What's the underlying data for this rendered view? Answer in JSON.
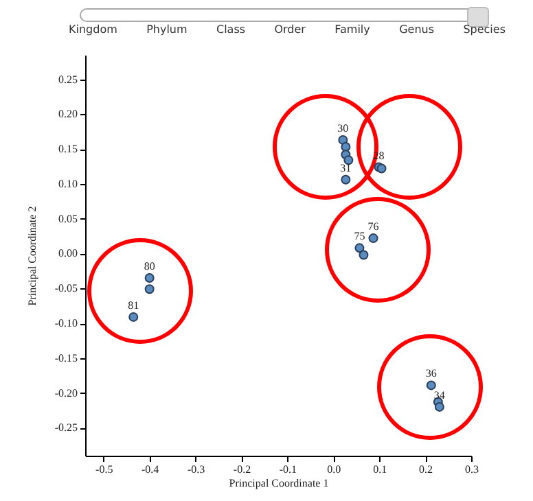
{
  "chart_data": {
    "type": "scatter",
    "xlabel": "Principal Coordinate 1",
    "ylabel": "Principal Coordinate 2",
    "annotations": [
      "Kingdom",
      "Phylum",
      "Class",
      "Order",
      "Family",
      "Genus",
      "Species",
      {
        "text": "30",
        "x": 0.021,
        "y": 0.163
      },
      {
        "text": "31",
        "x": 0.027,
        "y": 0.106
      },
      {
        "text": "28",
        "x": 0.099,
        "y": 0.124
      },
      {
        "text": "76",
        "x": 0.087,
        "y": 0.022
      },
      {
        "text": "75",
        "x": 0.057,
        "y": 0.008
      },
      {
        "text": "80",
        "x": -0.4,
        "y": -0.035
      },
      {
        "text": "81",
        "x": -0.435,
        "y": -0.091
      },
      {
        "text": "36",
        "x": 0.213,
        "y": -0.189
      },
      {
        "text": "34",
        "x": 0.231,
        "y": -0.22
      }
    ],
    "series": [
      {
        "color": "#5b8cc0",
        "x": [
          0.021,
          0.027,
          0.027,
          0.033,
          0.027,
          0.099,
          0.105,
          0.087,
          0.057,
          0.066,
          -0.4,
          -0.4,
          -0.435,
          0.213,
          0.228,
          0.231
        ],
        "values": [
          0.163,
          0.153,
          0.142,
          0.134,
          0.106,
          0.124,
          0.122,
          0.022,
          0.008,
          -0.002,
          -0.035,
          -0.051,
          -0.091,
          -0.189,
          -0.213,
          -0.22
        ]
      }
    ],
    "xlim": [
      -0.54,
      0.3
    ],
    "ylim": [
      -0.29,
      0.285
    ],
    "xticks": [
      {
        "value": -0.5,
        "label": "-0.5"
      },
      {
        "value": -0.4,
        "label": "-0.4"
      },
      {
        "value": -0.3,
        "label": "-0.3"
      },
      {
        "value": -0.2,
        "label": "-0.2"
      },
      {
        "value": -0.1,
        "label": "-0.1"
      },
      {
        "value": 0,
        "label": "0.0"
      },
      {
        "value": 0.1,
        "label": "0.1"
      },
      {
        "value": 0.2,
        "label": "0.2"
      },
      {
        "value": 0.3,
        "label": "0.3"
      }
    ],
    "yticks": [
      {
        "value": 0.25,
        "label": "0.25"
      },
      {
        "value": 0.2,
        "label": "0.20"
      },
      {
        "value": 0.15,
        "label": "0.15"
      },
      {
        "value": 0.1,
        "label": "0.10"
      },
      {
        "value": 0.05,
        "label": "0.05"
      },
      {
        "value": 0,
        "label": "0.00"
      },
      {
        "value": -0.05,
        "label": "-0.05"
      },
      {
        "value": -0.1,
        "label": "-0.10"
      },
      {
        "value": -0.15,
        "label": "-0.15"
      },
      {
        "value": -0.2,
        "label": "-0.20"
      },
      {
        "value": -0.25,
        "label": "-0.25"
      }
    ],
    "marker": "circle",
    "grid": false,
    "legend": false
  }
}
